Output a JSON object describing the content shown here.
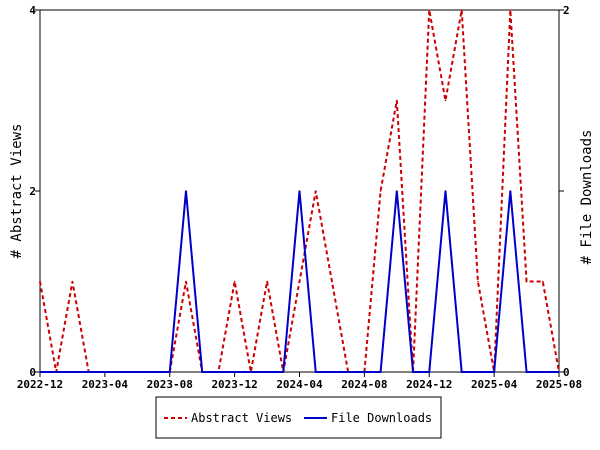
{
  "chart_data": {
    "type": "line",
    "x": [
      "2022-12",
      "2023-01",
      "2023-02",
      "2023-03",
      "2023-04",
      "2023-05",
      "2023-06",
      "2023-07",
      "2023-08",
      "2023-09",
      "2023-10",
      "2023-11",
      "2023-12",
      "2024-01",
      "2024-02",
      "2024-03",
      "2024-04",
      "2024-05",
      "2024-06",
      "2024-07",
      "2024-08",
      "2024-09",
      "2024-10",
      "2024-11",
      "2024-12",
      "2025-01",
      "2025-02",
      "2025-03",
      "2025-04",
      "2025-05",
      "2025-06",
      "2025-07",
      "2025-08"
    ],
    "x_tick_labels": [
      "2022-12",
      "2023-04",
      "2023-08",
      "2023-12",
      "2024-04",
      "2024-08",
      "2024-12",
      "2025-04",
      "2025-08"
    ],
    "ylabel_left": "# Abstract Views",
    "ylabel_right": "# File Downloads",
    "ylim_left": [
      0,
      4
    ],
    "ylim_right": [
      0,
      2
    ],
    "y_ticks_left": [
      "0",
      "2",
      "4"
    ],
    "y_ticks_right": [
      "0",
      "1",
      "2"
    ],
    "grid": false,
    "legend_position": "bottom",
    "series": [
      {
        "name": "Abstract Views",
        "axis": "left",
        "color": "#cc0000",
        "style": "dashed",
        "values": [
          1,
          0,
          1,
          0,
          0,
          0,
          0,
          0,
          0,
          1,
          0,
          0,
          1,
          0,
          1,
          0,
          1,
          2,
          1,
          0,
          0,
          2,
          3,
          0,
          4,
          3,
          4,
          1,
          0,
          4,
          1,
          1,
          0
        ]
      },
      {
        "name": "File Downloads",
        "axis": "right",
        "color": "#0000cc",
        "style": "solid",
        "values": [
          0,
          0,
          0,
          0,
          0,
          0,
          0,
          0,
          0,
          1,
          0,
          0,
          0,
          0,
          0,
          0,
          1,
          0,
          0,
          0,
          0,
          0,
          1,
          0,
          0,
          1,
          0,
          0,
          0,
          1,
          0,
          0,
          0
        ]
      }
    ]
  }
}
